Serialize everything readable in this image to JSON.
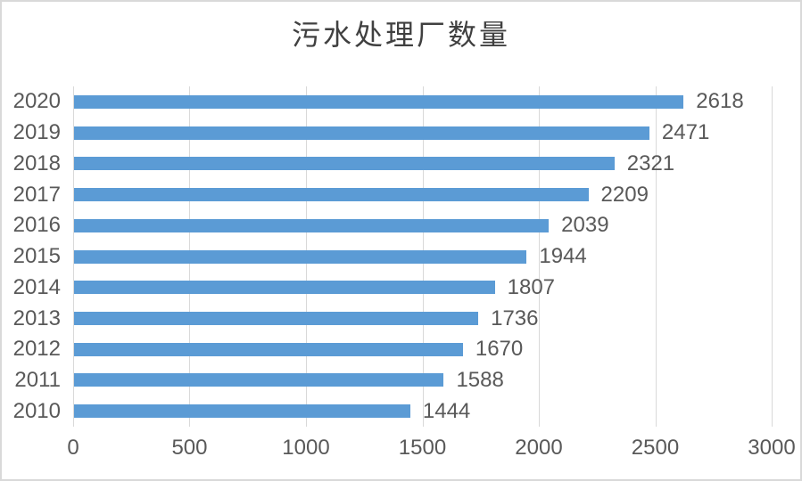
{
  "chart_data": {
    "type": "bar",
    "orientation": "horizontal",
    "title": "污水处理厂数量",
    "categories": [
      "2020",
      "2019",
      "2018",
      "2017",
      "2016",
      "2015",
      "2014",
      "2013",
      "2012",
      "2011",
      "2010"
    ],
    "values": [
      2618,
      2471,
      2321,
      2209,
      2039,
      1944,
      1807,
      1736,
      1670,
      1588,
      1444
    ],
    "xlim": [
      0,
      3000
    ],
    "x_ticks": [
      "0",
      "500",
      "1000",
      "1500",
      "2000",
      "2500",
      "3000"
    ],
    "grid": "vertical-gridlines",
    "legend": "none",
    "data_labels": true
  },
  "colors": {
    "bar": "#5b9bd5",
    "gridline": "#d9d9d9",
    "axis_label": "#595959",
    "title": "#404040",
    "background": "#ffffff",
    "border": "#d9d9d9"
  }
}
